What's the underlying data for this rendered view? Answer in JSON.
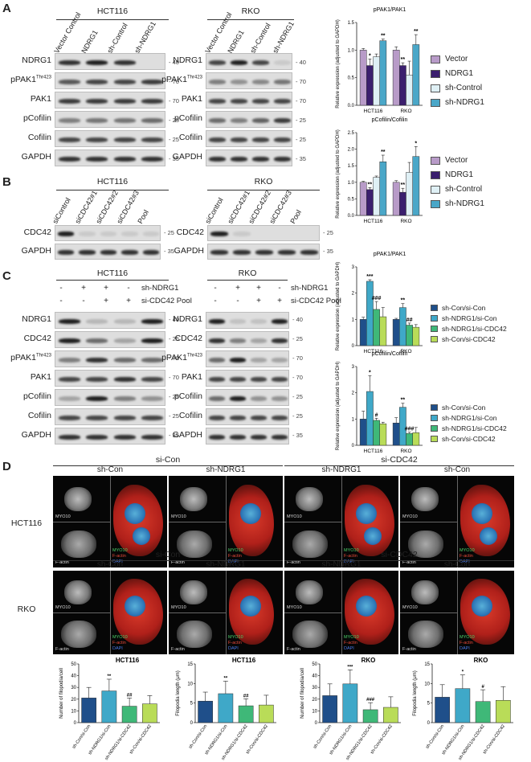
{
  "panels": {
    "A": {
      "letter": "A",
      "cell_lines": [
        "HCT116",
        "RKO"
      ],
      "lanes": [
        "Vector Control",
        "NDRG1",
        "sh-Control",
        "sh-NDRG1"
      ],
      "rows": [
        {
          "label": "NDRG1",
          "sup": "",
          "mw": "40"
        },
        {
          "label": "pPAK1",
          "sup": "Thr423",
          "mw": "70"
        },
        {
          "label": "PAK1",
          "sup": "",
          "mw": "70"
        },
        {
          "label": "pCofilin",
          "sup": "",
          "mw": "25"
        },
        {
          "label": "Cofilin",
          "sup": "",
          "mw": "25"
        },
        {
          "label": "GAPDH",
          "sup": "",
          "mw": "35"
        }
      ]
    },
    "B": {
      "letter": "B",
      "cell_lines": [
        "HCT116",
        "RKO"
      ],
      "lanes": [
        "siControl",
        "siCDC42#1",
        "siCDC42#2",
        "siCDC42#3",
        "Pool"
      ],
      "rows": [
        {
          "label": "CDC42",
          "mw": "25"
        },
        {
          "label": "GAPDH",
          "mw": "35"
        }
      ]
    },
    "C": {
      "letter": "C",
      "cell_lines": [
        "HCT116",
        "RKO"
      ],
      "treatment_rows": [
        {
          "label": "sh-NDRG1",
          "values": [
            "-",
            "+",
            "+",
            "-"
          ]
        },
        {
          "label": "si-CDC42 Pool",
          "values": [
            "-",
            "-",
            "+",
            "+"
          ]
        }
      ],
      "rows": [
        {
          "label": "NDRG1",
          "sup": "",
          "mw": "40"
        },
        {
          "label": "CDC42",
          "sup": "",
          "mw": "25"
        },
        {
          "label": "pPAK1",
          "sup": "Thr423",
          "mw": "70"
        },
        {
          "label": "PAK1",
          "sup": "",
          "mw": "70"
        },
        {
          "label": "pCofilin",
          "sup": "",
          "mw": "25"
        },
        {
          "label": "Cofilin",
          "sup": "",
          "mw": "25"
        },
        {
          "label": "GAPDH",
          "sup": "",
          "mw": "35"
        }
      ]
    },
    "D": {
      "letter": "D",
      "groups": [
        "si-Con",
        "si-CDC42"
      ],
      "columns": [
        "sh-Con",
        "sh-NDRG1",
        "sh-NDRG1",
        "sh-Con"
      ],
      "cell_lines": [
        "HCT116",
        "RKO"
      ],
      "channel_labels": {
        "myo": "MYO10",
        "factin": "F-actin",
        "merge_myo": "MYO10",
        "merge_factin": "F-actin",
        "merge_dapi": "DAPI"
      }
    }
  },
  "chart_data": [
    {
      "type": "bar",
      "title": "pPAK1/PAK1",
      "ylabel": "Relative expression (adjusted to GAPDH)",
      "categories": [
        "HCT116",
        "RKO"
      ],
      "ylim": [
        0,
        1.5
      ],
      "yticks": [
        "0.0",
        "0.5",
        "1.0",
        "1.5"
      ],
      "series": [
        {
          "name": "Vector",
          "color": "#b89bc8",
          "values": [
            1.0,
            1.0
          ],
          "errors": [
            0.03,
            0.06
          ]
        },
        {
          "name": "NDRG1",
          "color": "#3b1f6e",
          "values": [
            0.72,
            0.72
          ],
          "errors": [
            0.12,
            0.05
          ]
        },
        {
          "name": "sh-Control",
          "color": "#dff0f5",
          "values": [
            0.88,
            0.55
          ],
          "errors": [
            0.05,
            0.25
          ]
        },
        {
          "name": "sh-NDRG1",
          "color": "#4aa7c8",
          "values": [
            1.17,
            1.1
          ],
          "errors": [
            0.03,
            0.18
          ]
        }
      ],
      "annotations": [
        {
          "category": 0,
          "series": 1,
          "text": "*"
        },
        {
          "category": 0,
          "series": 3,
          "text": "**"
        },
        {
          "category": 1,
          "series": 1,
          "text": "**"
        },
        {
          "category": 1,
          "series": 3,
          "text": "**"
        }
      ]
    },
    {
      "type": "bar",
      "title": "pCofilin/Cofilin",
      "ylabel": "Relative expression (adjusted to GAPDH)",
      "categories": [
        "HCT116",
        "RKO"
      ],
      "ylim": [
        0,
        2.5
      ],
      "yticks": [
        "0.0",
        "0.5",
        "1.0",
        "1.5",
        "2.0",
        "2.5"
      ],
      "series": [
        {
          "name": "Vector",
          "color": "#b89bc8",
          "values": [
            1.0,
            1.0
          ],
          "errors": [
            0.03,
            0.05
          ]
        },
        {
          "name": "NDRG1",
          "color": "#3b1f6e",
          "values": [
            0.78,
            0.7
          ],
          "errors": [
            0.06,
            0.12
          ]
        },
        {
          "name": "sh-Control",
          "color": "#dff0f5",
          "values": [
            1.15,
            1.3
          ],
          "errors": [
            0.04,
            0.3
          ]
        },
        {
          "name": "sh-NDRG1",
          "color": "#4aa7c8",
          "values": [
            1.62,
            1.78
          ],
          "errors": [
            0.2,
            0.3
          ]
        }
      ],
      "annotations": [
        {
          "category": 0,
          "series": 1,
          "text": "**"
        },
        {
          "category": 0,
          "series": 3,
          "text": "**"
        },
        {
          "category": 1,
          "series": 1,
          "text": "**"
        },
        {
          "category": 1,
          "series": 3,
          "text": "*"
        }
      ]
    },
    {
      "type": "bar",
      "title": "pPAK1/PAK1",
      "ylabel": "Relative expression (adjusted to GAPDH)",
      "categories": [
        "HCT116",
        "RKO"
      ],
      "ylim": [
        0,
        3
      ],
      "yticks": [
        "0",
        "1",
        "2",
        "3"
      ],
      "series": [
        {
          "name": "sh-Con/si-Con",
          "color": "#1f4f8a",
          "values": [
            1.0,
            1.0
          ],
          "errors": [
            0.08,
            0.04
          ]
        },
        {
          "name": "sh-NDRG1/si-Con",
          "color": "#3fa8c8",
          "values": [
            2.45,
            1.45
          ],
          "errors": [
            0.06,
            0.15
          ]
        },
        {
          "name": "sh-NDRG1/si-CDC42",
          "color": "#3fb878",
          "values": [
            1.38,
            0.78
          ],
          "errors": [
            0.3,
            0.08
          ]
        },
        {
          "name": "sh-Con/si-CDC42",
          "color": "#b9dc58",
          "values": [
            1.1,
            0.7
          ],
          "errors": [
            0.35,
            0.1
          ]
        }
      ],
      "annotations": [
        {
          "category": 0,
          "series": 1,
          "text": "***"
        },
        {
          "category": 0,
          "series": 2,
          "text": "###"
        },
        {
          "category": 1,
          "series": 1,
          "text": "**"
        },
        {
          "category": 1,
          "series": 2,
          "text": "##"
        }
      ]
    },
    {
      "type": "bar",
      "title": "pCofilin/Cofilin",
      "ylabel": "Relative expression (adjusted to GAPDH)",
      "categories": [
        "HCT116",
        "RKO"
      ],
      "ylim": [
        0,
        3
      ],
      "yticks": [
        "0",
        "1",
        "2",
        "3"
      ],
      "series": [
        {
          "name": "sh-Con/si-Con",
          "color": "#1f4f8a",
          "values": [
            1.0,
            0.85
          ],
          "errors": [
            0.3,
            0.2
          ]
        },
        {
          "name": "sh-NDRG1/si-Con",
          "color": "#3fa8c8",
          "values": [
            2.05,
            1.45
          ],
          "errors": [
            0.6,
            0.15
          ]
        },
        {
          "name": "sh-NDRG1/si-CDC42",
          "color": "#3fb878",
          "values": [
            0.95,
            0.45
          ],
          "errors": [
            0.08,
            0.05
          ]
        },
        {
          "name": "sh-Con/si-CDC42",
          "color": "#b9dc58",
          "values": [
            0.82,
            0.48
          ],
          "errors": [
            0.06,
            0.2
          ]
        }
      ],
      "annotations": [
        {
          "category": 0,
          "series": 1,
          "text": "*"
        },
        {
          "category": 0,
          "series": 2,
          "text": "#"
        },
        {
          "category": 1,
          "series": 1,
          "text": "**"
        },
        {
          "category": 1,
          "series": 2,
          "text": "###"
        }
      ]
    },
    {
      "type": "bar",
      "title": "HCT116",
      "ylabel": "Number of filopodia/cell",
      "categories": [
        "sh-Con/si-Con",
        "sh-NDRG1/si-Con",
        "sh-NDRG1/si-CDC42",
        "sh-Con/si-CDC42"
      ],
      "ylim": [
        0,
        50
      ],
      "yticks": [
        "0",
        "10",
        "20",
        "30",
        "40",
        "50"
      ],
      "values": [
        21,
        27,
        14,
        16
      ],
      "errors": [
        9,
        10,
        7,
        7
      ],
      "colors": [
        "#1f4f8a",
        "#3fa8c8",
        "#3fb878",
        "#b9dc58"
      ],
      "annotations": [
        {
          "index": 1,
          "text": "**"
        },
        {
          "index": 2,
          "text": "##"
        }
      ]
    },
    {
      "type": "bar",
      "title": "HCT116",
      "ylabel": "Filopodia length (μm)",
      "categories": [
        "sh-Con/si-Con",
        "sh-NDRG1/si-Con",
        "sh-NDRG1/si-CDC42",
        "sh-Con/si-CDC42"
      ],
      "ylim": [
        0,
        15
      ],
      "yticks": [
        "0",
        "5",
        "10",
        "15"
      ],
      "values": [
        5.5,
        7.4,
        4.3,
        4.5
      ],
      "errors": [
        2.3,
        3.2,
        1.8,
        2.5
      ],
      "colors": [
        "#1f4f8a",
        "#3fa8c8",
        "#3fb878",
        "#b9dc58"
      ],
      "annotations": [
        {
          "index": 1,
          "text": "**"
        },
        {
          "index": 2,
          "text": "##"
        }
      ]
    },
    {
      "type": "bar",
      "title": "RKO",
      "ylabel": "Number of filopodia/cell",
      "categories": [
        "sh-Con/si-Con",
        "sh-NDRG1/si-Con",
        "sh-NDRG1/si-CDC42",
        "sh-Con/si-CDC42"
      ],
      "ylim": [
        0,
        50
      ],
      "yticks": [
        "0",
        "10",
        "20",
        "30",
        "40",
        "50"
      ],
      "values": [
        23,
        33,
        11,
        13
      ],
      "errors": [
        10,
        12,
        6,
        9
      ],
      "colors": [
        "#1f4f8a",
        "#3fa8c8",
        "#3fb878",
        "#b9dc58"
      ],
      "annotations": [
        {
          "index": 1,
          "text": "***"
        },
        {
          "index": 2,
          "text": "###"
        }
      ]
    },
    {
      "type": "bar",
      "title": "RKO",
      "ylabel": "Filopodia length (μm)",
      "categories": [
        "sh-Con/si-Con",
        "sh-NDRG1/si-Con",
        "sh-NDRG1/si-CDC42",
        "sh-Con/si-CDC42"
      ],
      "ylim": [
        0,
        15
      ],
      "yticks": [
        "0",
        "5",
        "10",
        "15"
      ],
      "values": [
        6.5,
        8.7,
        5.4,
        5.7
      ],
      "errors": [
        3.2,
        3.5,
        3.0,
        3.5
      ],
      "colors": [
        "#1f4f8a",
        "#3fa8c8",
        "#3fb878",
        "#b9dc58"
      ],
      "annotations": [
        {
          "index": 1,
          "text": "*"
        },
        {
          "index": 2,
          "text": "#"
        }
      ]
    }
  ]
}
